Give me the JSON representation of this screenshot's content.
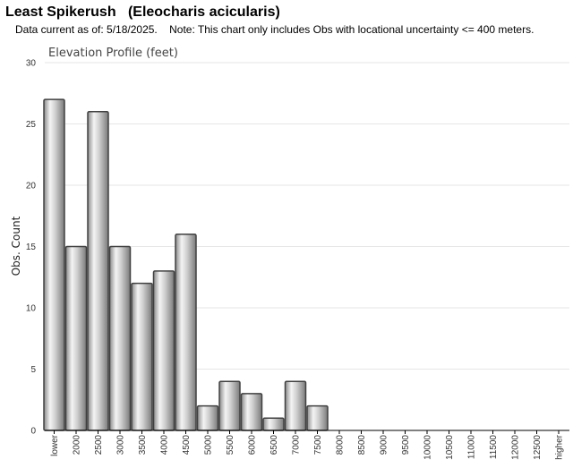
{
  "header": {
    "title": "Least Spikerush   (Eleocharis acicularis)",
    "subtitle": "Data current as of: 5/18/2025.    Note: This chart only includes Obs with locational uncertainty <= 400 meters."
  },
  "chart_data": {
    "type": "bar",
    "title": "Elevation Profile (feet)",
    "xlabel": "",
    "ylabel": "Obs. Count",
    "ylim": [
      0,
      30
    ],
    "yticks": [
      0,
      5,
      10,
      15,
      20,
      25,
      30
    ],
    "grid": true,
    "categories": [
      "lower",
      "2000",
      "2500",
      "3000",
      "3500",
      "4000",
      "4500",
      "5000",
      "5500",
      "6000",
      "6500",
      "7000",
      "7500",
      "8000",
      "8500",
      "9000",
      "9500",
      "10000",
      "10500",
      "11000",
      "11500",
      "12000",
      "12500",
      "higher"
    ],
    "values": [
      27,
      15,
      26,
      15,
      12,
      13,
      16,
      2,
      4,
      3,
      1,
      4,
      2,
      0,
      0,
      0,
      0,
      0,
      0,
      0,
      0,
      0,
      0,
      0
    ],
    "colors": {
      "bar_edge": "#404040",
      "bar_dark": "#8a8a8a",
      "bar_light": "#f2f2f2",
      "grid": "#e6e6e6",
      "axis": "#000000"
    }
  }
}
